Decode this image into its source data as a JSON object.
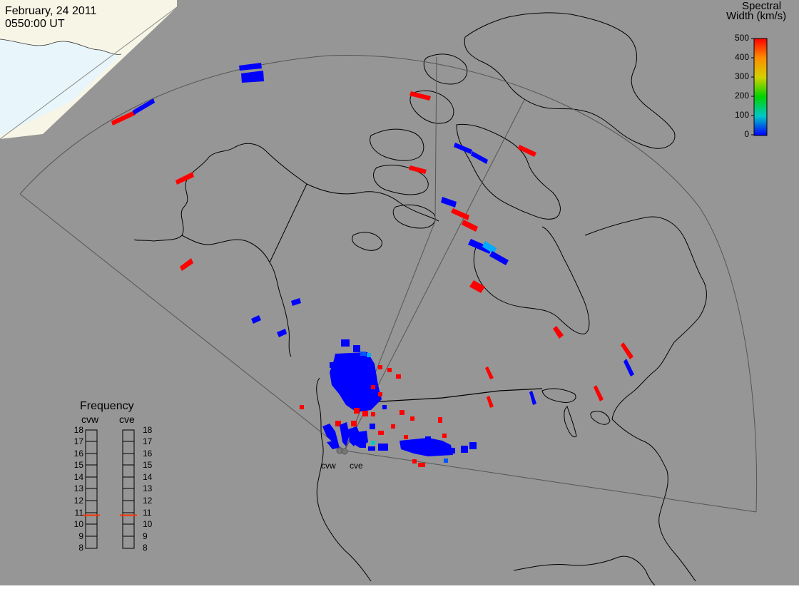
{
  "header": {
    "date": "February, 24 2011",
    "time": "0550:00 UT"
  },
  "colorbar": {
    "title_line1": "Spectral",
    "title_line2": "Width (km/s)",
    "ticks": [
      "500",
      "400",
      "300",
      "200",
      "100",
      "0"
    ]
  },
  "frequency_panel": {
    "title": "Frequency",
    "left_radar": "cvw",
    "right_radar": "cve",
    "ticks": [
      "18",
      "17",
      "16",
      "15",
      "14",
      "13",
      "12",
      "11",
      "10",
      "9",
      "8"
    ],
    "cvw_value_mhz": 10.8,
    "cve_value_mhz": 10.8
  },
  "radar_labels": {
    "west": "cvw",
    "east": "cve"
  },
  "colors": {
    "background": "#969696",
    "daylight_land": "#f6f5e6",
    "daylight_ocean": "#e8f6fc",
    "low_width": "#0000ff",
    "high_width": "#ff0000",
    "coastline": "#000000",
    "fov_outline": "#555555"
  }
}
